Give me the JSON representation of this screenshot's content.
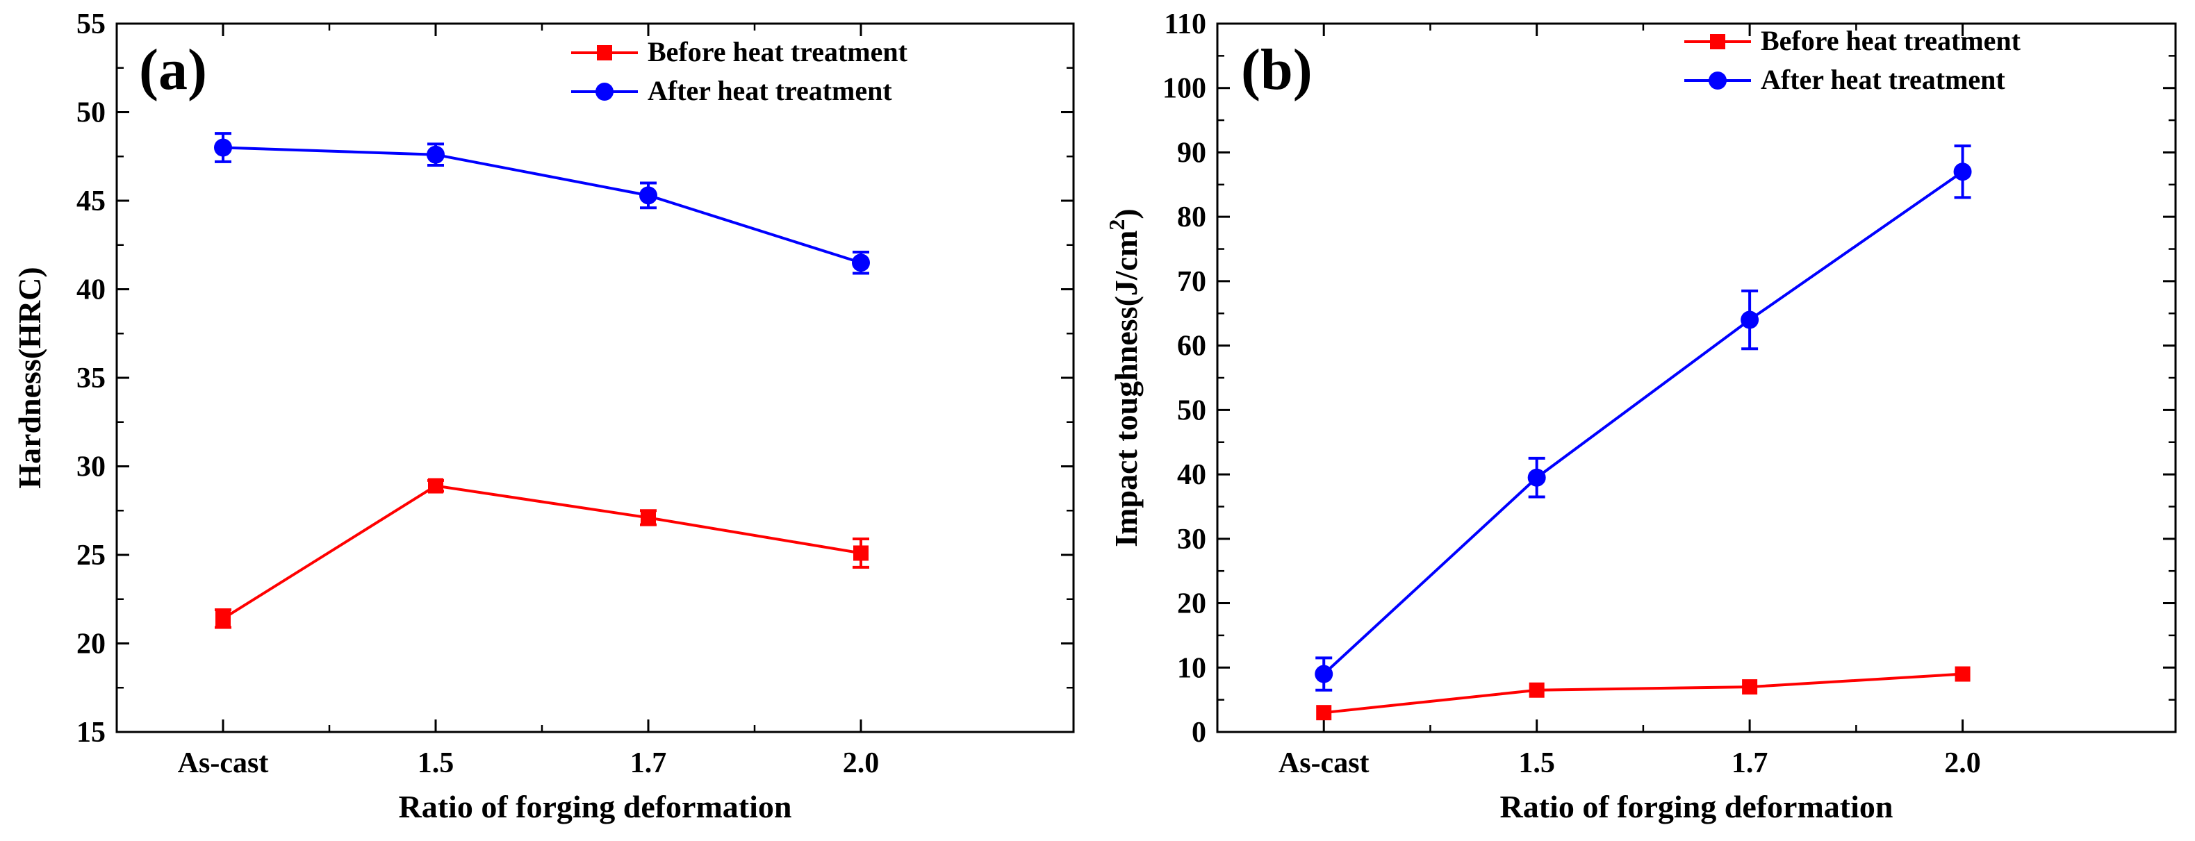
{
  "chart_data": [
    {
      "type": "line",
      "panel_label": "(a)",
      "title": "",
      "xlabel": "Ratio of forging deformation",
      "ylabel": "Hardness(HRC)",
      "ylabel_sup": "",
      "ylabel_tail": "",
      "categories": [
        "As-cast",
        "1.5",
        "1.7",
        "2.0"
      ],
      "ylim": [
        15,
        55
      ],
      "yticks": [
        "15",
        "20",
        "25",
        "30",
        "35",
        "40",
        "45",
        "50",
        "55"
      ],
      "legend_position": "top-right",
      "series": [
        {
          "name": "Before heat treatment",
          "color": "#ff0000",
          "marker": "square",
          "values": [
            21.4,
            28.9,
            27.1,
            25.1
          ],
          "errors": [
            0.5,
            0.3,
            0.4,
            0.8
          ]
        },
        {
          "name": "After heat treatment",
          "color": "#0000ff",
          "marker": "circle",
          "values": [
            48.0,
            47.6,
            45.3,
            41.5
          ],
          "errors": [
            0.8,
            0.6,
            0.7,
            0.6
          ]
        }
      ]
    },
    {
      "type": "line",
      "panel_label": "(b)",
      "title": "",
      "xlabel": "Ratio of forging deformation",
      "ylabel": "Impact toughness(J/cm",
      "ylabel_sup": "2",
      "ylabel_tail": ")",
      "categories": [
        "As-cast",
        "1.5",
        "1.7",
        "2.0"
      ],
      "ylim": [
        0,
        110
      ],
      "yticks": [
        "0",
        "10",
        "20",
        "30",
        "40",
        "50",
        "60",
        "70",
        "80",
        "90",
        "100",
        "110"
      ],
      "legend_position": "top-right",
      "series": [
        {
          "name": "Before heat treatment",
          "color": "#ff0000",
          "marker": "square",
          "values": [
            3.0,
            6.5,
            7.0,
            9.0
          ],
          "errors": [
            0,
            0,
            0,
            0
          ]
        },
        {
          "name": "After heat treatment",
          "color": "#0000ff",
          "marker": "circle",
          "values": [
            9.0,
            39.5,
            64.0,
            87.0
          ],
          "errors": [
            2.5,
            3.0,
            4.5,
            4.0
          ]
        }
      ]
    }
  ]
}
